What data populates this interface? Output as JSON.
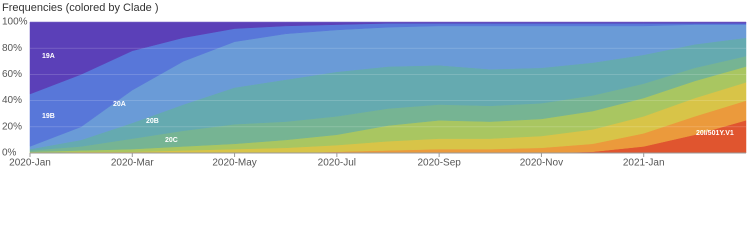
{
  "chart_data": {
    "type": "area",
    "stacked": true,
    "title": "Frequencies (colored by Clade )",
    "x": [
      "2020-01",
      "2020-02",
      "2020-03",
      "2020-04",
      "2020-05",
      "2020-06",
      "2020-07",
      "2020-08",
      "2020-09",
      "2020-10",
      "2020-11",
      "2020-12",
      "2021-01",
      "2021-02",
      "2021-03"
    ],
    "xlim": [
      "2020-01",
      "2021-03"
    ],
    "xticks": [
      {
        "value": "2020-01",
        "label": "2020-Jan"
      },
      {
        "value": "2020-03",
        "label": "2020-Mar"
      },
      {
        "value": "2020-05",
        "label": "2020-May"
      },
      {
        "value": "2020-07",
        "label": "2020-Jul"
      },
      {
        "value": "2020-09",
        "label": "2020-Sep"
      },
      {
        "value": "2020-11",
        "label": "2020-Nov"
      },
      {
        "value": "2021-01",
        "label": "2021-Jan"
      }
    ],
    "ylim": [
      0,
      100
    ],
    "yticks": [
      {
        "value": 0,
        "label": "0%"
      },
      {
        "value": 20,
        "label": "20%"
      },
      {
        "value": 40,
        "label": "40%"
      },
      {
        "value": 60,
        "label": "60%"
      },
      {
        "value": 80,
        "label": "80%"
      },
      {
        "value": 100,
        "label": "100%"
      }
    ],
    "grid": true,
    "series": [
      {
        "name": "20I/501Y.V1",
        "color": "#e0552f",
        "values": [
          0,
          0,
          0,
          0,
          0,
          0,
          0,
          0,
          0,
          0,
          0,
          1,
          5,
          14,
          25
        ]
      },
      {
        "color": "#eb9a3c",
        "values": [
          0,
          0,
          0,
          0,
          0,
          0,
          1,
          2,
          3,
          3,
          4,
          6,
          10,
          14,
          15
        ]
      },
      {
        "color": "#d8c448",
        "values": [
          0,
          1,
          1,
          2,
          3,
          4,
          5,
          7,
          8,
          8,
          9,
          11,
          13,
          14,
          14
        ]
      },
      {
        "color": "#a9c661",
        "values": [
          1,
          1,
          2,
          3,
          4,
          6,
          8,
          12,
          14,
          13,
          13,
          14,
          14,
          13,
          12
        ]
      },
      {
        "name": "20C",
        "color": "#76b493",
        "values": [
          1,
          3,
          8,
          12,
          15,
          14,
          14,
          13,
          12,
          12,
          12,
          12,
          11,
          10,
          8
        ]
      },
      {
        "name": "20B",
        "color": "#65aab0",
        "values": [
          1,
          5,
          12,
          20,
          28,
          32,
          34,
          32,
          30,
          28,
          27,
          25,
          22,
          18,
          14
        ]
      },
      {
        "name": "20A",
        "color": "#6a9bd7",
        "values": [
          2,
          10,
          25,
          33,
          35,
          35,
          32,
          30,
          30,
          33,
          32,
          28,
          22,
          15,
          10
        ]
      },
      {
        "name": "19B",
        "color": "#5877d9",
        "values": [
          40,
          40,
          30,
          18,
          10,
          6,
          4,
          3,
          2,
          2,
          2,
          2,
          2,
          1,
          1
        ]
      },
      {
        "name": "19A",
        "color": "#5b40b8",
        "values": [
          55,
          40,
          22,
          12,
          5,
          3,
          2,
          1,
          1,
          1,
          1,
          1,
          1,
          1,
          1
        ]
      }
    ]
  }
}
